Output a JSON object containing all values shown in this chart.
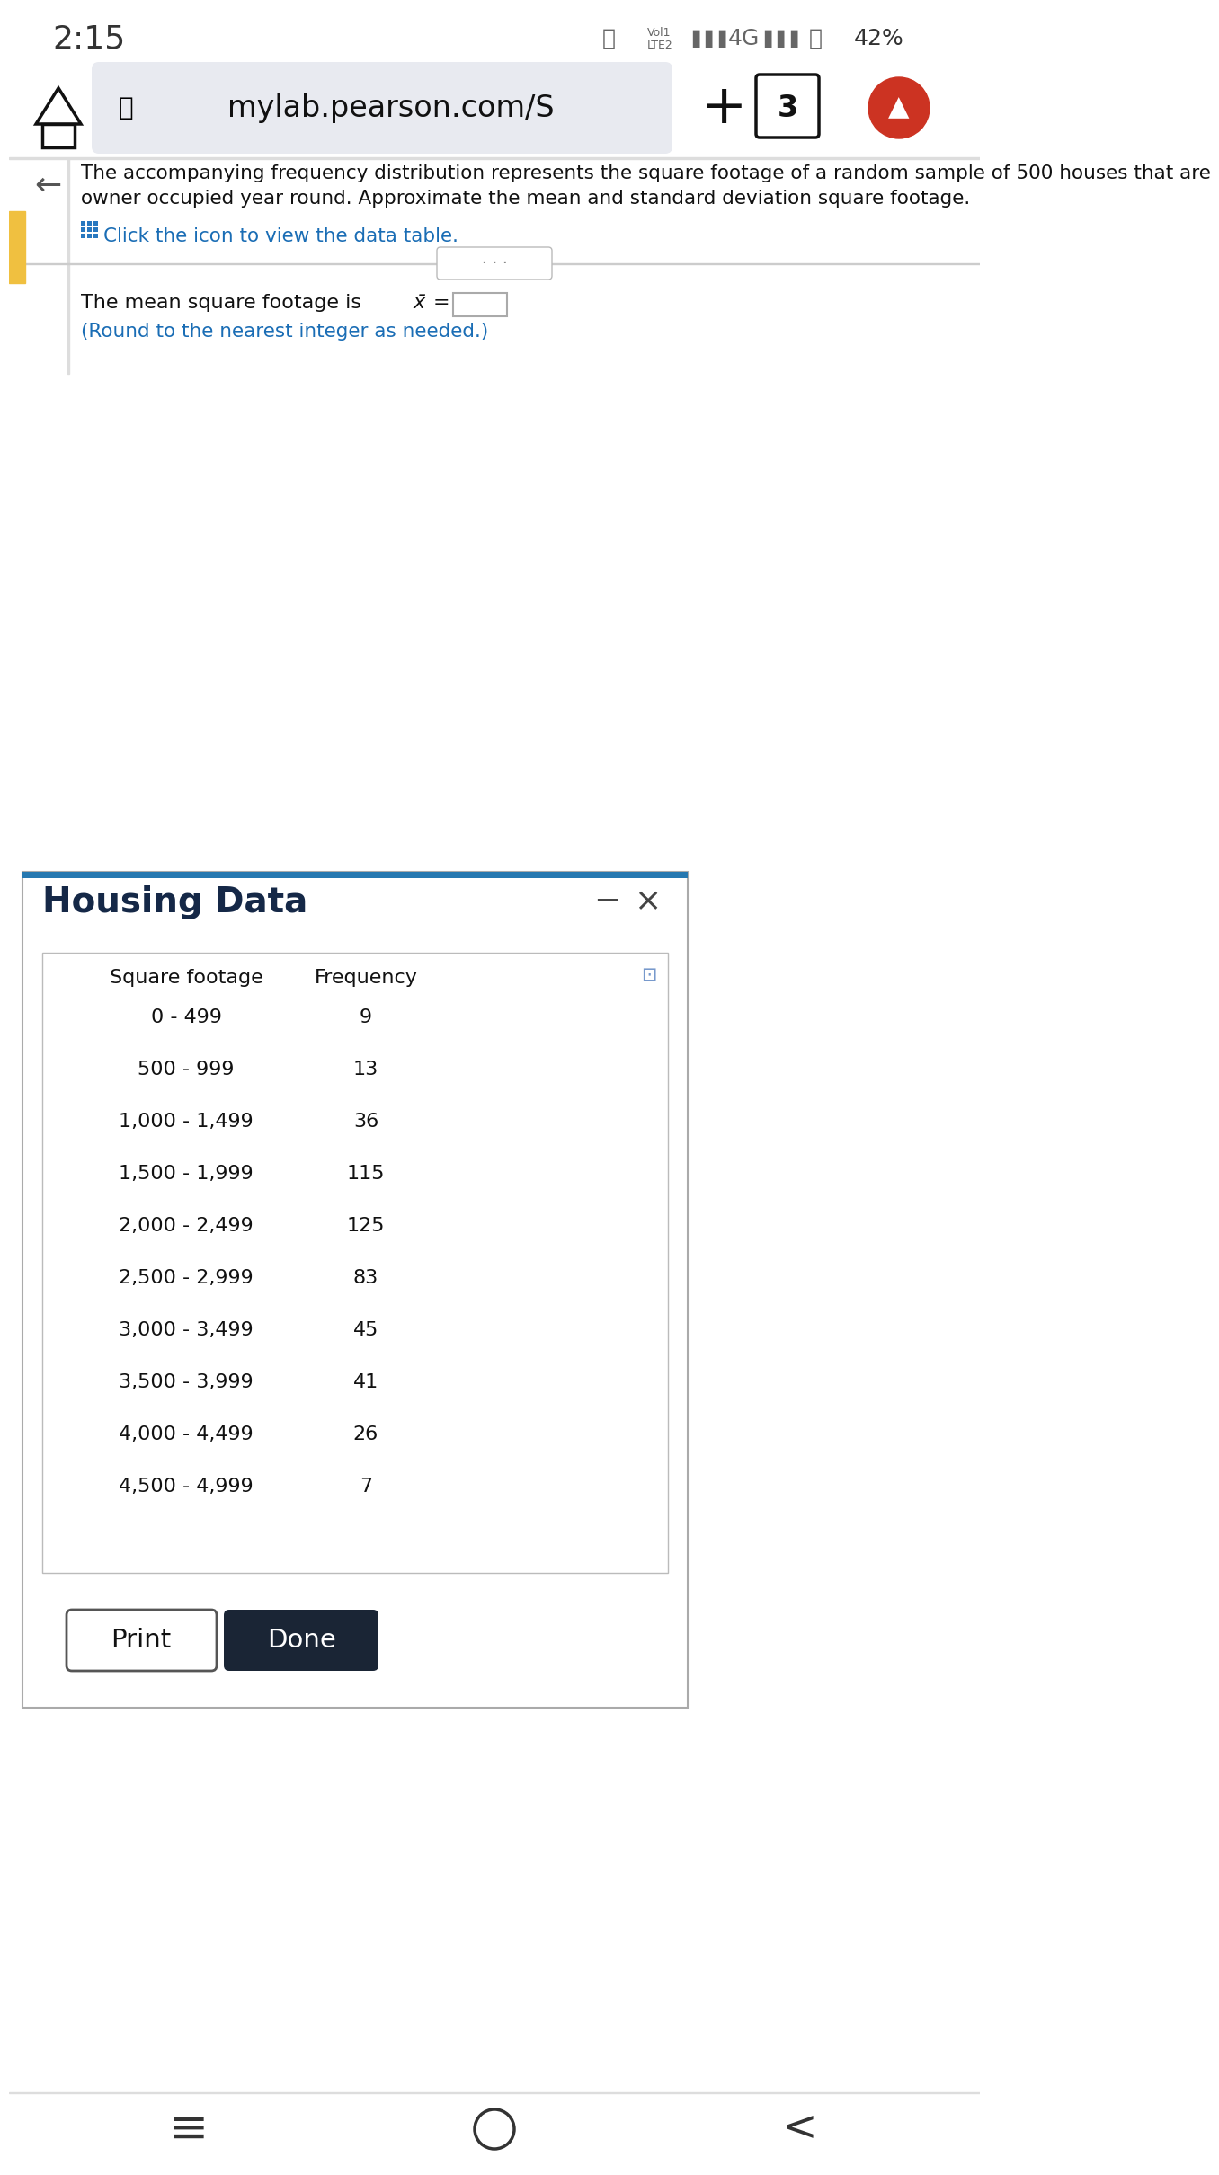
{
  "time": "2:15",
  "url": "mylab.pearson.com/S",
  "description_line1": "The accompanying frequency distribution represents the square footage of a random sample of 500 houses that are",
  "description_line2": "owner occupied year round. Approximate the mean and standard deviation square footage.",
  "click_text": "Click the icon to view the data table.",
  "round_text": "(Round to the nearest integer as needed.)",
  "dialog_title": "Housing Data",
  "col_header_sq": "Square footage",
  "col_header_freq": "Frequency",
  "table_data": [
    [
      "0 - 499",
      "9"
    ],
    [
      "500 - 999",
      "13"
    ],
    [
      "1,000 - 1,499",
      "36"
    ],
    [
      "1,500 - 1,999",
      "115"
    ],
    [
      "2,000 - 2,499",
      "125"
    ],
    [
      "2,500 - 2,999",
      "83"
    ],
    [
      "3,000 - 3,499",
      "45"
    ],
    [
      "3,500 - 3,999",
      "41"
    ],
    [
      "4,000 - 4,499",
      "26"
    ],
    [
      "4,500 - 4,999",
      "7"
    ]
  ],
  "btn_print": "Print",
  "btn_done": "Done",
  "bg_color": "#ffffff",
  "dialog_border_color": "#2678b0",
  "dialog_title_color": "#152847",
  "table_border_color": "#cccccc",
  "text_color": "#111111",
  "gray_text": "#555555",
  "blue_text_color": "#1a6db5",
  "url_bar_color": "#e8eaf0",
  "yellow_bar_color": "#f0c040",
  "divider_color": "#cccccc",
  "status_icon_color": "#666666",
  "nav_icon_color": "#111111",
  "done_btn_color": "#1a2535",
  "dialog_shadow": "#aaaaaa"
}
